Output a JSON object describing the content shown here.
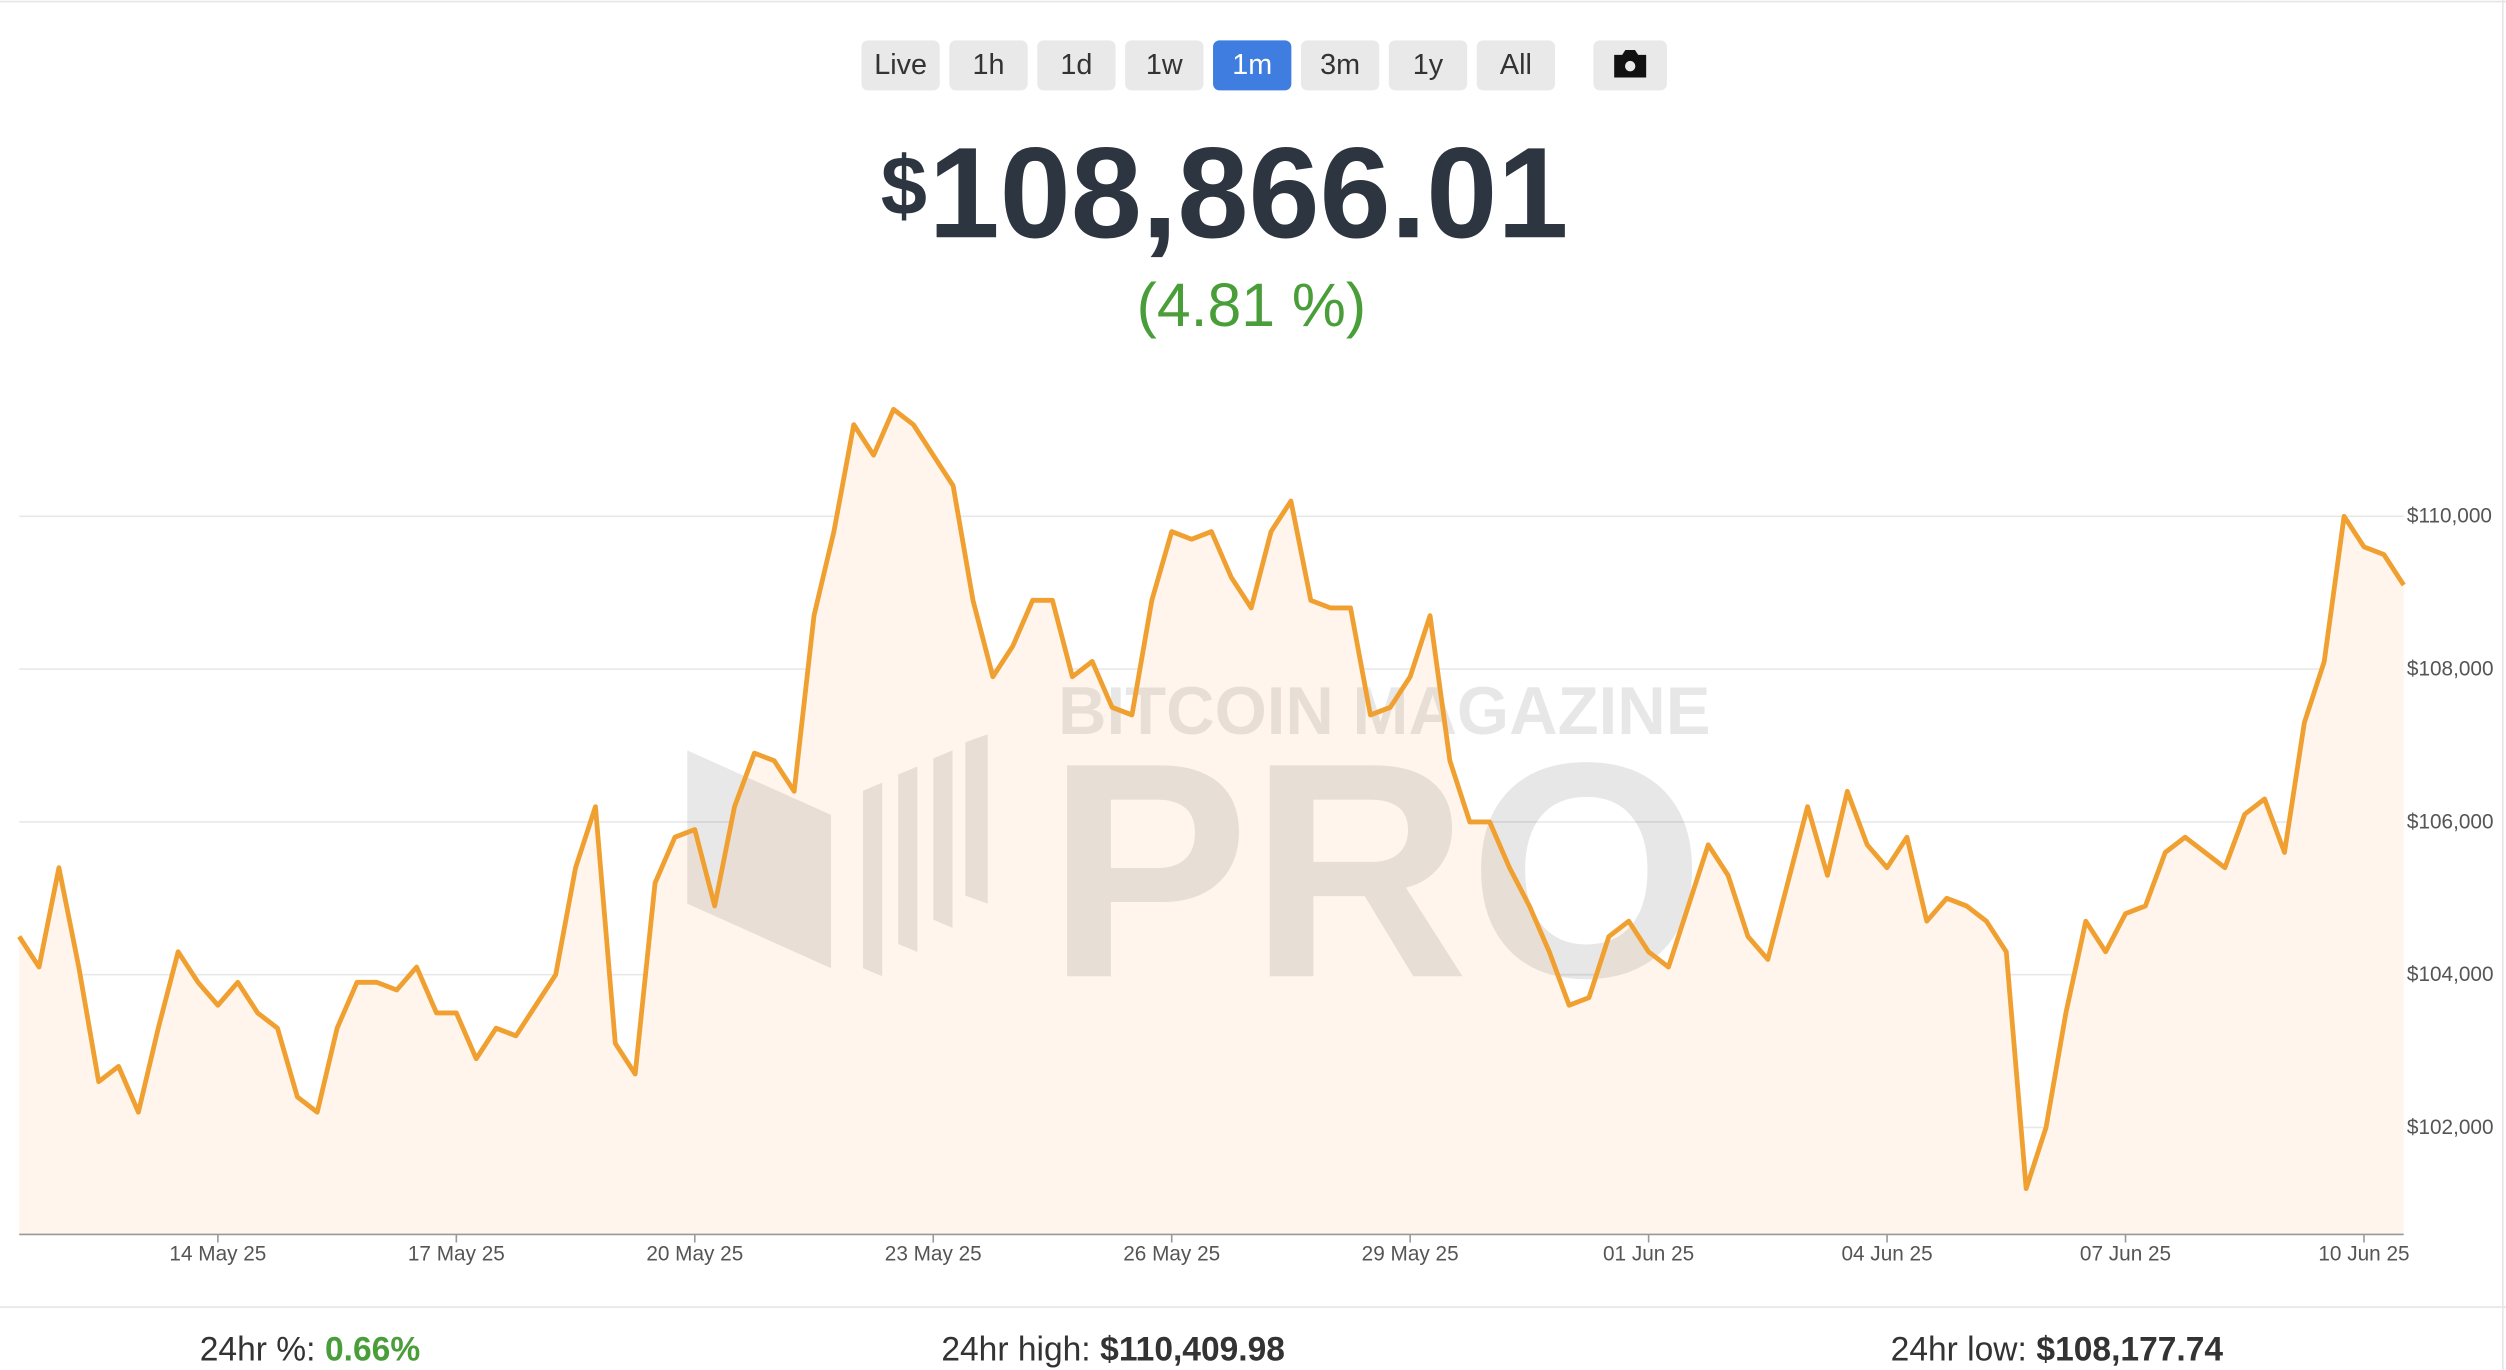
{
  "controls": {
    "ranges": [
      "Live",
      "1h",
      "1d",
      "1w",
      "1m",
      "3m",
      "1y",
      "All"
    ],
    "active": "1m"
  },
  "price": {
    "currency": "$",
    "value": "108,866.01",
    "change": "(4.81 %)"
  },
  "watermark": {
    "line1": "BITCOIN MAGAZINE",
    "line2": "PRO"
  },
  "chart_data": {
    "type": "line",
    "color": "#f0a030",
    "fill": "#fff5ec",
    "grid": true,
    "categories": [
      null,
      null,
      null,
      null,
      null,
      null,
      null,
      null,
      null,
      null,
      "14 May 25",
      null,
      null,
      null,
      null,
      null,
      null,
      null,
      null,
      null,
      null,
      null,
      "17 May 25",
      null,
      null,
      null,
      null,
      null,
      null,
      null,
      null,
      null,
      null,
      null,
      "20 May 25",
      null,
      null,
      null,
      null,
      null,
      null,
      null,
      null,
      null,
      null,
      null,
      "23 May 25",
      null,
      null,
      null,
      null,
      null,
      null,
      null,
      null,
      null,
      null,
      null,
      "26 May 25",
      null,
      null,
      null,
      null,
      null,
      null,
      null,
      null,
      null,
      null,
      null,
      "29 May 25",
      null,
      null,
      null,
      null,
      null,
      null,
      null,
      null,
      null,
      null,
      null,
      "01 Jun 25",
      null,
      null,
      null,
      null,
      null,
      null,
      null,
      null,
      null,
      null,
      null,
      "04 Jun 25",
      null,
      null,
      null,
      null,
      null,
      null,
      null,
      null,
      null,
      null,
      null,
      "07 Jun 25",
      null,
      null,
      null,
      null,
      null,
      null,
      null,
      null,
      null,
      null,
      null,
      "10 Jun 25",
      null,
      null
    ],
    "values": [
      104500,
      104100,
      105400,
      104100,
      102600,
      102800,
      102200,
      103300,
      104300,
      103900,
      103600,
      103900,
      103500,
      103300,
      102400,
      102200,
      103300,
      103900,
      103900,
      103800,
      104100,
      103500,
      103500,
      102900,
      103300,
      103200,
      103600,
      104000,
      105400,
      106200,
      103100,
      102700,
      105200,
      105800,
      105900,
      104900,
      106200,
      106900,
      106800,
      106400,
      108700,
      109800,
      111200,
      110800,
      111400,
      111200,
      110800,
      110400,
      108900,
      107900,
      108300,
      108900,
      108900,
      107900,
      108100,
      107500,
      107400,
      108900,
      109800,
      109700,
      109800,
      109200,
      108800,
      109800,
      110200,
      108900,
      108800,
      108800,
      107400,
      107500,
      107900,
      108700,
      106800,
      106000,
      106000,
      105400,
      104900,
      104300,
      103600,
      103700,
      104500,
      104700,
      104300,
      104100,
      104900,
      105700,
      105300,
      104500,
      104200,
      105200,
      106200,
      105300,
      106400,
      105700,
      105400,
      105800,
      104700,
      105000,
      104900,
      104700,
      104300,
      101200,
      102000,
      103500,
      104700,
      104300,
      104800,
      104900,
      105600,
      105800,
      105600,
      105400,
      106100,
      106300,
      105600,
      107300,
      108100,
      110000,
      109600,
      109500,
      109100
    ],
    "ylim": [
      100600,
      111900
    ],
    "yticks": [
      {
        "value": 102000,
        "label": "$102,000"
      },
      {
        "value": 104000,
        "label": "$104,000"
      },
      {
        "value": 106000,
        "label": "$106,000"
      },
      {
        "value": 108000,
        "label": "$108,000"
      },
      {
        "value": 110000,
        "label": "$110,000"
      }
    ]
  },
  "stats": {
    "pct_label": "24hr %:",
    "pct_value": "0.66%",
    "high_label": "24hr high:",
    "high_value": "$110,409.98",
    "low_label": "24hr low:",
    "low_value": "$108,177.74"
  }
}
